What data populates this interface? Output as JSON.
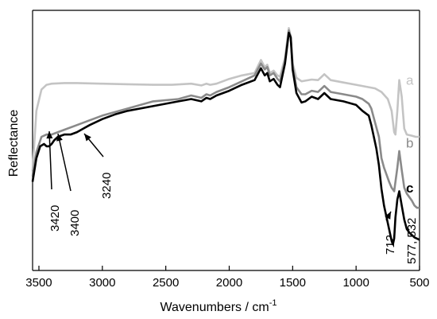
{
  "chart_data": {
    "type": "line",
    "title": "",
    "xlabel": "Wavenumbers / cm",
    "xlabel_sup": "-1",
    "ylabel": "Reflectance",
    "xlim": [
      3550,
      500
    ],
    "x_ticks": [
      3500,
      3000,
      2500,
      2000,
      1500,
      1000,
      500
    ],
    "x_tick_labels": [
      "3500",
      "3000",
      "2500",
      "2000",
      "1500",
      "1000",
      "500"
    ],
    "y_ticks_shown": false,
    "grid": false,
    "series": [
      {
        "name": "a",
        "color": "#c4c4c4",
        "label_at": 520,
        "x": [
          3550,
          3520,
          3480,
          3440,
          3400,
          3300,
          3200,
          3000,
          2800,
          2600,
          2450,
          2300,
          2220,
          2180,
          2150,
          2100,
          2000,
          1900,
          1800,
          1750,
          1720,
          1700,
          1680,
          1650,
          1620,
          1600,
          1560,
          1530,
          1515,
          1500,
          1470,
          1430,
          1400,
          1350,
          1300,
          1250,
          1200,
          1100,
          1000,
          900,
          850,
          800,
          750,
          720,
          700,
          690,
          675,
          660,
          640,
          620,
          600,
          560,
          530,
          500
        ],
        "y": [
          0.2,
          0.7,
          0.88,
          0.92,
          0.93,
          0.935,
          0.935,
          0.93,
          0.925,
          0.92,
          0.92,
          0.93,
          0.915,
          0.93,
          0.92,
          0.93,
          0.97,
          1.0,
          1.02,
          1.13,
          1.07,
          1.09,
          1.02,
          1.04,
          1.0,
          0.99,
          1.15,
          1.4,
          1.32,
          1.1,
          0.98,
          0.95,
          0.955,
          0.965,
          0.96,
          1.01,
          0.96,
          0.94,
          0.92,
          0.9,
          0.89,
          0.86,
          0.8,
          0.7,
          0.52,
          0.5,
          0.7,
          0.96,
          0.82,
          0.55,
          0.5,
          0.49,
          0.48,
          0.48
        ]
      },
      {
        "name": "b",
        "color": "#8a8a8a",
        "label_at": 520,
        "x": [
          3550,
          3520,
          3480,
          3440,
          3400,
          3350,
          3300,
          3200,
          3100,
          3000,
          2800,
          2600,
          2400,
          2300,
          2220,
          2180,
          2150,
          2100,
          2000,
          1900,
          1800,
          1750,
          1720,
          1700,
          1680,
          1650,
          1620,
          1600,
          1560,
          1530,
          1515,
          1500,
          1470,
          1430,
          1400,
          1350,
          1300,
          1250,
          1200,
          1100,
          1000,
          950,
          900,
          880,
          860,
          840,
          820,
          800,
          780,
          760,
          740,
          720,
          700,
          690,
          675,
          660,
          640,
          620,
          600,
          580,
          560,
          540,
          520,
          500
        ],
        "y": [
          0.15,
          0.35,
          0.48,
          0.5,
          0.5,
          0.52,
          0.54,
          0.58,
          0.62,
          0.66,
          0.72,
          0.78,
          0.8,
          0.83,
          0.81,
          0.84,
          0.83,
          0.86,
          0.9,
          0.95,
          1.0,
          1.1,
          1.05,
          1.07,
          1.0,
          1.02,
          0.97,
          0.95,
          1.12,
          1.38,
          1.33,
          1.08,
          0.9,
          0.84,
          0.84,
          0.87,
          0.86,
          0.91,
          0.86,
          0.84,
          0.82,
          0.8,
          0.76,
          0.72,
          0.64,
          0.56,
          0.48,
          0.3,
          0.22,
          0.16,
          0.1,
          0.05,
          0.02,
          0.1,
          0.22,
          0.36,
          0.2,
          0.05,
          0.0,
          -0.03,
          -0.06,
          -0.1,
          -0.12,
          -0.12
        ]
      },
      {
        "name": "c",
        "color": "#000000",
        "label_at": 520,
        "x": [
          3550,
          3520,
          3490,
          3460,
          3440,
          3420,
          3400,
          3380,
          3350,
          3300,
          3250,
          3200,
          3150,
          3100,
          3000,
          2900,
          2800,
          2600,
          2400,
          2300,
          2220,
          2180,
          2150,
          2100,
          2000,
          1900,
          1800,
          1750,
          1720,
          1700,
          1680,
          1650,
          1620,
          1600,
          1560,
          1530,
          1515,
          1500,
          1470,
          1430,
          1400,
          1350,
          1300,
          1250,
          1200,
          1100,
          1000,
          950,
          900,
          880,
          860,
          840,
          820,
          800,
          780,
          760,
          740,
          720,
          710,
          700,
          690,
          675,
          660,
          640,
          620,
          600,
          580,
          560,
          540,
          520,
          500
        ],
        "y": [
          0.1,
          0.3,
          0.4,
          0.42,
          0.4,
          0.4,
          0.42,
          0.45,
          0.48,
          0.5,
          0.5,
          0.52,
          0.55,
          0.58,
          0.63,
          0.67,
          0.7,
          0.74,
          0.78,
          0.8,
          0.78,
          0.81,
          0.8,
          0.83,
          0.87,
          0.92,
          0.96,
          1.06,
          1.0,
          1.02,
          0.95,
          0.97,
          0.92,
          0.9,
          1.1,
          1.36,
          1.32,
          1.05,
          0.85,
          0.77,
          0.78,
          0.82,
          0.8,
          0.85,
          0.8,
          0.78,
          0.75,
          0.7,
          0.66,
          0.58,
          0.48,
          0.38,
          0.24,
          0.04,
          -0.1,
          -0.2,
          -0.3,
          -0.4,
          -0.43,
          -0.38,
          -0.2,
          -0.05,
          0.02,
          -0.1,
          -0.22,
          -0.3,
          -0.33,
          -0.35,
          -0.37,
          -0.38,
          -0.39
        ]
      }
    ],
    "annotations": [
      {
        "text": "3420",
        "arrow_tip": [
          3420,
          0.44
        ],
        "rotation": -90,
        "text_align": "left"
      },
      {
        "text": "3400",
        "arrow_tip": [
          3360,
          0.44
        ],
        "rotation": -90,
        "text_align": "left"
      },
      {
        "text": "3240",
        "arrow_tip": [
          3240,
          0.42
        ],
        "rotation": -90,
        "text_align": "left"
      },
      {
        "text": "712",
        "arrow_tip": [
          712,
          -0.4
        ],
        "rotation": -90,
        "text_align": "left"
      },
      {
        "text": "577, 532",
        "arrow_tip": null,
        "rotation": -90,
        "text_align": "left"
      }
    ]
  }
}
